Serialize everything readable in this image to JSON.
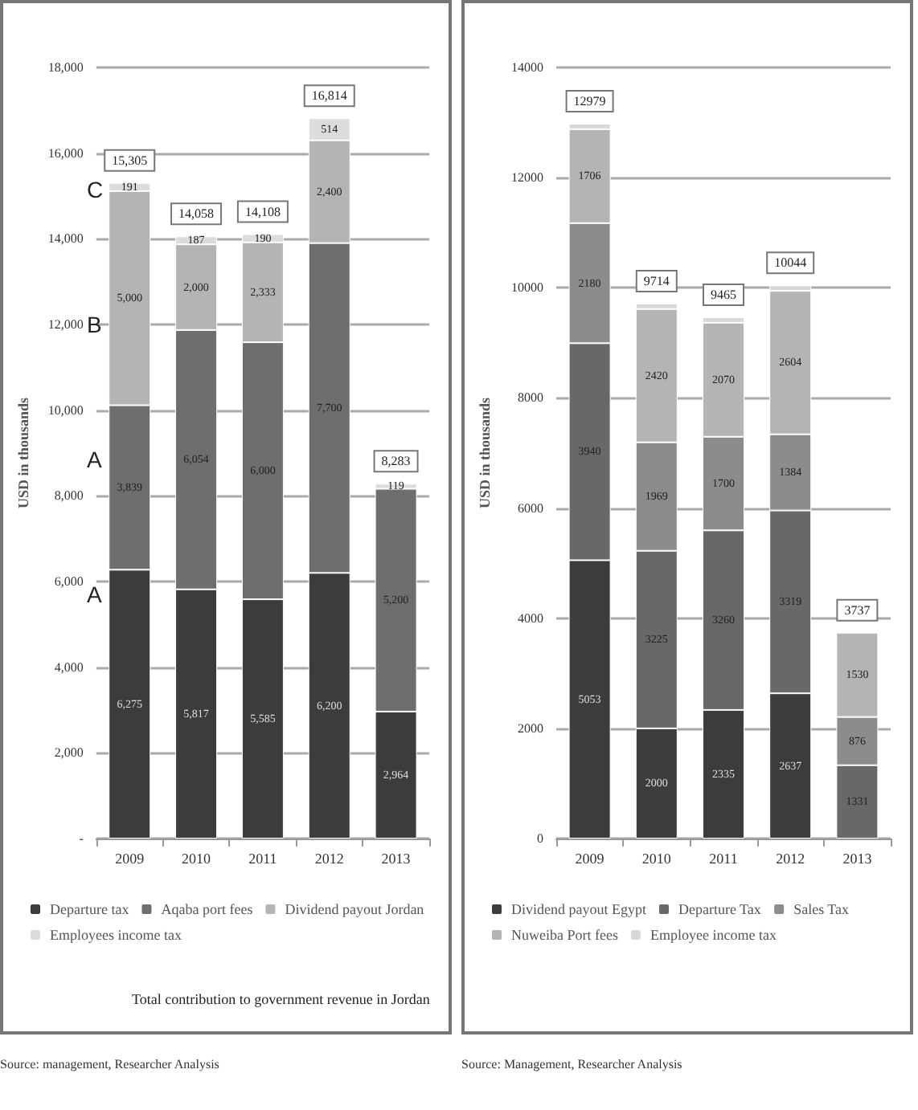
{
  "chart_data": [
    {
      "type": "bar",
      "stacked": true,
      "categories": [
        "2009",
        "2010",
        "2011",
        "2012",
        "2013"
      ],
      "ylabel": "USD in thousands",
      "ylim": [
        0,
        18000
      ],
      "yticks": [
        {
          "value": 0,
          "label": "-"
        },
        {
          "value": 2000,
          "label": "2,000"
        },
        {
          "value": 4000,
          "label": "4,000"
        },
        {
          "value": 6000,
          "label": "6,000"
        },
        {
          "value": 8000,
          "label": "8,000"
        },
        {
          "value": 10000,
          "label": "10,000"
        },
        {
          "value": 12000,
          "label": "12,000"
        },
        {
          "value": 14000,
          "label": "14,000"
        },
        {
          "value": 16000,
          "label": "16,000"
        },
        {
          "value": 18000,
          "label": "18,000"
        }
      ],
      "grid": "y",
      "legend": "bottom",
      "series": [
        {
          "name": "Departure tax",
          "color": "#3c3c3c",
          "values": [
            6275,
            5817,
            5585,
            6200,
            2964
          ],
          "value_labels": [
            "6,275",
            "5,817",
            "5,585",
            "6,200",
            "2,964"
          ]
        },
        {
          "name": "Aqaba port fees",
          "color": "#6e6e6e",
          "values": [
            3839,
            6054,
            6000,
            7700,
            5200
          ],
          "value_labels": [
            "3,839",
            "6,054",
            "6,000",
            "7,700",
            "5,200"
          ]
        },
        {
          "name": "Dividend payout Jordan",
          "color": "#b4b4b4",
          "values": [
            5000,
            2000,
            2333,
            2400,
            null
          ],
          "value_labels": [
            "5,000",
            "2,000",
            "2,333",
            "2,400",
            null
          ]
        },
        {
          "name": "Employees income tax",
          "color": "#dcdcdc",
          "values": [
            191,
            187,
            190,
            514,
            119
          ],
          "value_labels": [
            "191",
            "187",
            "190",
            "514",
            "119"
          ]
        }
      ],
      "totals": [
        "15,305",
        "14,058",
        "14,108",
        "16,814",
        "8,283"
      ],
      "annotations": [
        "C",
        "B",
        "A",
        "A",
        "Total contribution to government revenue in Jordan",
        "Source: management, Researcher Analysis"
      ]
    },
    {
      "type": "bar",
      "stacked": true,
      "categories": [
        "2009",
        "2010",
        "2011",
        "2012",
        "2013"
      ],
      "ylabel": "USD in thousands",
      "ylim": [
        0,
        14000
      ],
      "yticks": [
        0,
        2000,
        4000,
        6000,
        8000,
        10000,
        12000,
        14000
      ],
      "grid": "y",
      "legend": "bottom",
      "series": [
        {
          "name": "Dividend payout Egypt",
          "color": "#3c3c3c",
          "values": [
            5053,
            2000,
            2335,
            2637,
            null
          ],
          "value_labels": [
            "5053",
            "2000",
            "2335",
            "2637",
            null
          ]
        },
        {
          "name": "Departure Tax",
          "color": "#686868",
          "values": [
            3940,
            3225,
            3260,
            3319,
            1331
          ],
          "value_labels": [
            "3940",
            "3225",
            "3260",
            "3319",
            "1331"
          ]
        },
        {
          "name": "Sales Tax",
          "color": "#8c8c8c",
          "values": [
            2180,
            1969,
            1700,
            1384,
            876
          ],
          "value_labels": [
            "2180",
            "1969",
            "1700",
            "1384",
            "876"
          ]
        },
        {
          "name": "Nuweiba Port fees",
          "color": "#b4b4b4",
          "values": [
            1706,
            2420,
            2070,
            2604,
            1530
          ],
          "value_labels": [
            "1706",
            "2420",
            "2070",
            "2604",
            "1530"
          ]
        },
        {
          "name": "Employee income tax",
          "color": "#d8d8d8",
          "values": [
            100,
            100,
            100,
            100,
            null
          ]
        }
      ],
      "totals": [
        "12979",
        "9714",
        "9465",
        "10044",
        "3737"
      ],
      "annotations": [
        "Source: Management, Researcher Analysis"
      ]
    }
  ]
}
